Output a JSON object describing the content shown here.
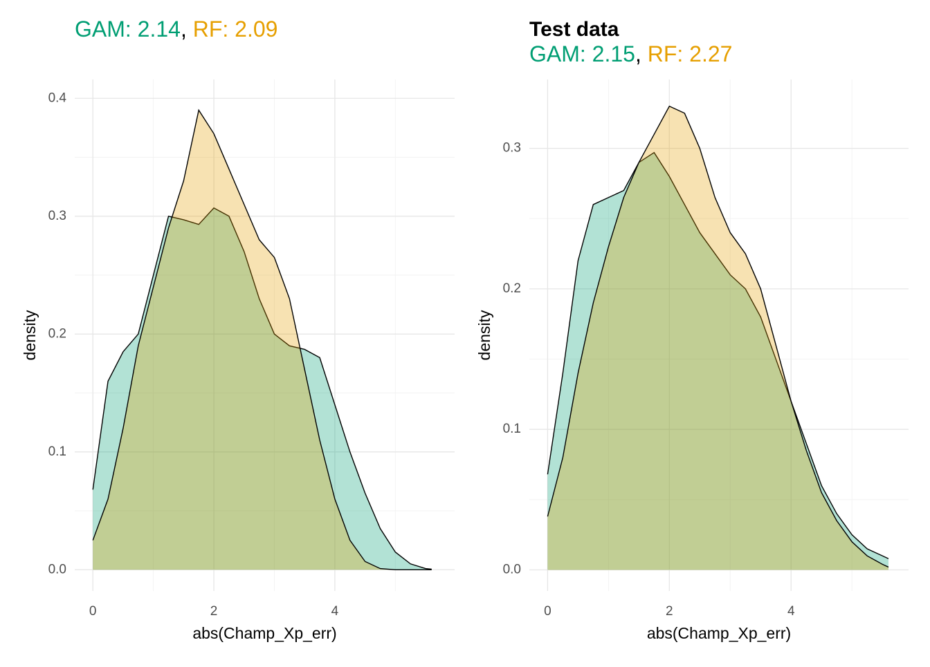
{
  "chart_data": [
    {
      "type": "density",
      "subtitle": [
        {
          "text": "GAM: 2.14",
          "color": "#009E73"
        },
        {
          "text": ", ",
          "color": "#000000"
        },
        {
          "text": "RF: 2.09",
          "color": "#E69F00"
        }
      ],
      "x_label": "abs(Champ_Xp_err)",
      "y_label": "density",
      "x": [
        0,
        0.25,
        0.5,
        0.75,
        1,
        1.25,
        1.5,
        1.75,
        2,
        2.25,
        2.5,
        2.75,
        3,
        3.25,
        3.5,
        3.75,
        4,
        4.25,
        4.5,
        4.75,
        5,
        5.25,
        5.5,
        5.6
      ],
      "series": [
        {
          "name": "GAM",
          "color": "#009E73",
          "values": [
            0.068,
            0.16,
            0.185,
            0.2,
            0.25,
            0.3,
            0.297,
            0.293,
            0.307,
            0.3,
            0.27,
            0.23,
            0.2,
            0.19,
            0.187,
            0.18,
            0.14,
            0.1,
            0.065,
            0.035,
            0.015,
            0.005,
            0.001,
            0.0005
          ]
        },
        {
          "name": "RF",
          "color": "#E69F00",
          "values": [
            0.025,
            0.06,
            0.12,
            0.19,
            0.24,
            0.29,
            0.33,
            0.39,
            0.37,
            0.34,
            0.31,
            0.28,
            0.265,
            0.23,
            0.17,
            0.11,
            0.06,
            0.025,
            0.007,
            0.001,
            0,
            0,
            0,
            0
          ]
        }
      ],
      "xlim": [
        -0.3,
        5.98
      ],
      "ylim": [
        -0.018,
        0.416
      ],
      "xticks": [
        0,
        2,
        4
      ],
      "xminor": [
        1,
        3,
        5
      ],
      "yticks": [
        {
          "value": 0,
          "label": "0.0"
        },
        0.1,
        0.2,
        0.3,
        0.4
      ],
      "yminor": [
        0.05,
        0.15,
        0.25,
        0.35
      ],
      "grid": true,
      "fill_opacity": 0.3
    },
    {
      "type": "density",
      "title": "Test data",
      "subtitle": [
        {
          "text": "GAM: 2.15",
          "color": "#009E73"
        },
        {
          "text": ", ",
          "color": "#000000"
        },
        {
          "text": "RF: 2.27",
          "color": "#E69F00"
        }
      ],
      "x_label": "abs(Champ_Xp_err)",
      "y_label": "density",
      "x": [
        0,
        0.25,
        0.5,
        0.75,
        1,
        1.25,
        1.5,
        1.75,
        2,
        2.25,
        2.5,
        2.75,
        3,
        3.25,
        3.5,
        3.75,
        4,
        4.25,
        4.5,
        4.75,
        5,
        5.25,
        5.5,
        5.6
      ],
      "series": [
        {
          "name": "GAM",
          "color": "#009E73",
          "values": [
            0.068,
            0.14,
            0.22,
            0.26,
            0.265,
            0.27,
            0.29,
            0.297,
            0.28,
            0.26,
            0.24,
            0.225,
            0.21,
            0.2,
            0.18,
            0.15,
            0.12,
            0.09,
            0.06,
            0.04,
            0.025,
            0.015,
            0.01,
            0.008
          ]
        },
        {
          "name": "RF",
          "color": "#E69F00",
          "values": [
            0.038,
            0.08,
            0.14,
            0.19,
            0.23,
            0.265,
            0.29,
            0.31,
            0.33,
            0.325,
            0.3,
            0.265,
            0.24,
            0.225,
            0.2,
            0.16,
            0.12,
            0.085,
            0.055,
            0.035,
            0.02,
            0.01,
            0.004,
            0.002
          ]
        }
      ],
      "xlim": [
        -0.3,
        5.93
      ],
      "ylim": [
        -0.015,
        0.349
      ],
      "xticks": [
        0,
        2,
        4
      ],
      "xminor": [
        1,
        3,
        5
      ],
      "yticks": [
        {
          "value": 0,
          "label": "0.0"
        },
        0.1,
        0.2,
        0.3
      ],
      "yminor": [
        0.05,
        0.15,
        0.25
      ],
      "grid": true,
      "fill_opacity": 0.3
    }
  ]
}
